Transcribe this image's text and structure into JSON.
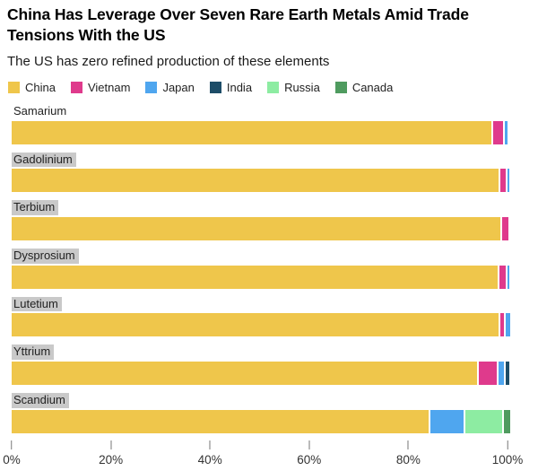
{
  "header": {
    "title": "China Has Leverage Over Seven Rare Earth Metals Amid Trade Tensions With the US",
    "subtitle": "The US has zero refined production of these elements"
  },
  "legend": [
    {
      "label": "China",
      "color": "#EFC64B"
    },
    {
      "label": "Vietnam",
      "color": "#DF3A8C"
    },
    {
      "label": "Japan",
      "color": "#4FA6EF"
    },
    {
      "label": "India",
      "color": "#1D4D68"
    },
    {
      "label": "Russia",
      "color": "#8DECA2"
    },
    {
      "label": "Canada",
      "color": "#4F9B5F"
    }
  ],
  "chart_data": {
    "type": "bar",
    "orientation": "horizontal",
    "stacked": true,
    "unit": "percent",
    "title": "China Has Leverage Over Seven Rare Earth Metals Amid Trade Tensions With the US",
    "subtitle": "The US has zero refined production of these elements",
    "categories": [
      "Samarium",
      "Gadolinium",
      "Terbium",
      "Dysprosium",
      "Lutetium",
      "Yttrium",
      "Scandium"
    ],
    "series": [
      {
        "name": "China",
        "color": "#EFC64B",
        "values": [
          96.8,
          98.2,
          98.6,
          98.0,
          98.2,
          93.8,
          84.0
        ]
      },
      {
        "name": "Vietnam",
        "color": "#DF3A8C",
        "values": [
          1.9,
          1.1,
          1.2,
          1.3,
          0.7,
          3.7,
          0
        ]
      },
      {
        "name": "Japan",
        "color": "#4FA6EF",
        "values": [
          0.5,
          0.3,
          0,
          0.4,
          1.0,
          1.0,
          6.8
        ]
      },
      {
        "name": "India",
        "color": "#1D4D68",
        "values": [
          0,
          0,
          0,
          0,
          0,
          0.7,
          0
        ]
      },
      {
        "name": "Russia",
        "color": "#8DECA2",
        "values": [
          0,
          0,
          0,
          0,
          0,
          0,
          7.4
        ]
      },
      {
        "name": "Canada",
        "color": "#4F9B5F",
        "values": [
          0,
          0,
          0,
          0,
          0,
          0,
          1.2
        ]
      }
    ],
    "label_highlight": [
      false,
      true,
      true,
      true,
      true,
      true,
      true
    ],
    "x_axis": {
      "range": [
        0,
        100
      ],
      "ticks": [
        "0%",
        "20%",
        "40%",
        "60%",
        "80%",
        "100%"
      ],
      "tick_values": [
        0,
        20,
        40,
        60,
        80,
        100
      ]
    },
    "legend_position": "top",
    "grid": false
  }
}
